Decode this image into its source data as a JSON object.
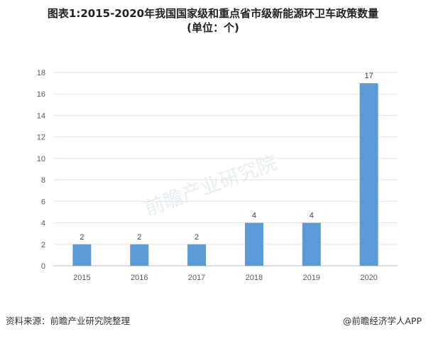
{
  "title_line1": "图表1:2015-2020年我国国家级和重点省市级新能源环卫车政策数量",
  "title_line2": "(单位：个)",
  "source": "资料来源：前瞻产业研究院整理",
  "credit": "@前瞻经济学人APP",
  "watermark": "前瞻产业研究院",
  "chart_data": {
    "type": "bar",
    "categories": [
      "2015",
      "2016",
      "2017",
      "2018",
      "2019",
      "2020"
    ],
    "values": [
      2,
      2,
      2,
      4,
      4,
      17
    ],
    "ylim": [
      0,
      18
    ],
    "yticks": [
      0,
      2,
      4,
      6,
      8,
      10,
      12,
      14,
      16,
      18
    ],
    "grid": true,
    "bar_color": "#5B9BD5",
    "data_labels": true
  }
}
